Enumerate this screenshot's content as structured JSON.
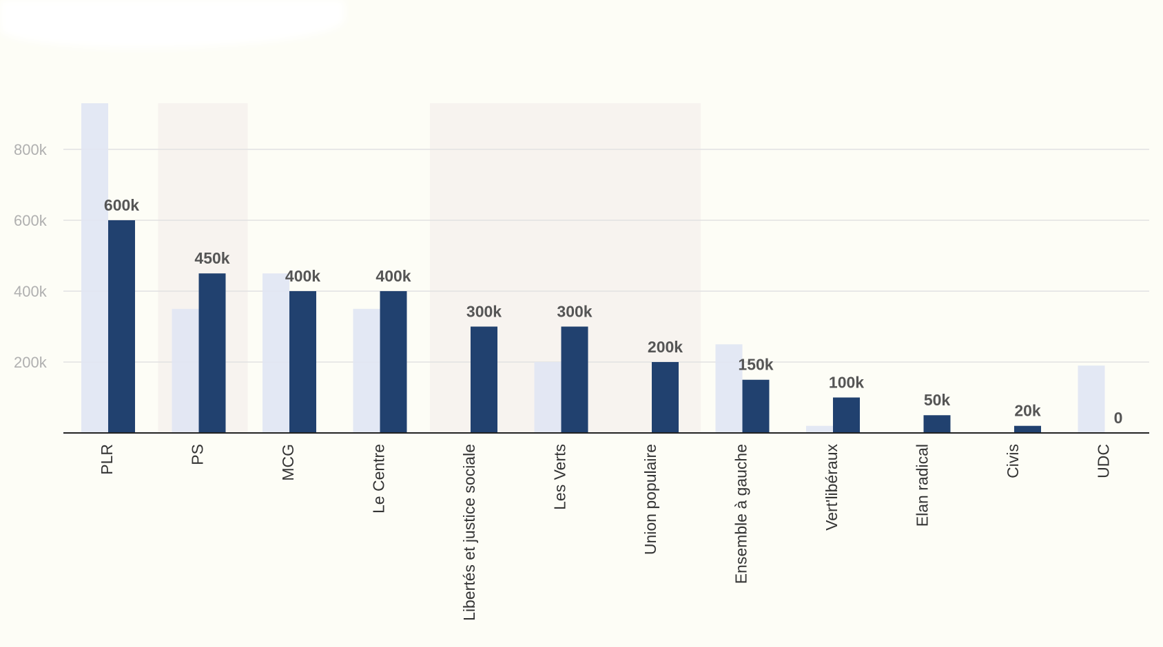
{
  "colors": {
    "background": "#fdfdf6",
    "bar_current": "#21416f",
    "bar_previous": "#e1e6f3",
    "highlight_band": "#f7f3ef",
    "gridline": "#e2e2e2",
    "axis": "#222222",
    "tick_text": "#b0b0b0",
    "value_label": "#555555",
    "category_text": "#333333"
  },
  "chart_data": {
    "type": "bar",
    "categories": [
      "PLR",
      "PS",
      "MCG",
      "Le Centre",
      "Libertés et justice sociale",
      "Les Verts",
      "Union populaire",
      "Ensemble à gauche",
      "Vert'libéraux",
      "Elan radical",
      "Civis",
      "UDC"
    ],
    "series": [
      {
        "values": [
          930000,
          350000,
          450000,
          350000,
          0,
          200000,
          0,
          250000,
          20000,
          0,
          0,
          190000
        ]
      },
      {
        "values": [
          600000,
          450000,
          400000,
          400000,
          300000,
          300000,
          200000,
          150000,
          100000,
          50000,
          20000,
          0
        ]
      }
    ],
    "value_labels": [
      "600k",
      "450k",
      "400k",
      "400k",
      "300k",
      "300k",
      "200k",
      "150k",
      "100k",
      "50k",
      "20k",
      "0"
    ],
    "ylim": [
      0,
      930000
    ],
    "yticks": [
      200000,
      400000,
      600000,
      800000
    ],
    "ytick_labels": [
      "200k",
      "400k",
      "600k",
      "800k"
    ],
    "highlight_categories": [
      "PS",
      "Libertés et justice sociale",
      "Les Verts",
      "Union populaire"
    ],
    "grid": true
  }
}
